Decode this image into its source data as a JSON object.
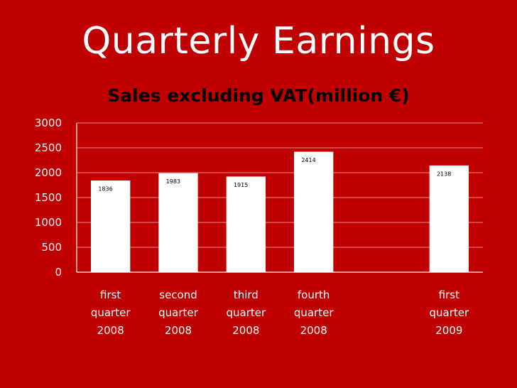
{
  "slide": {
    "title": "Quarterly Earnings"
  },
  "chart_data": {
    "type": "bar",
    "title": "Sales excluding VAT(million €)",
    "xlabel": "",
    "ylabel": "",
    "ylim": [
      0,
      3000
    ],
    "yticks": [
      0,
      500,
      1000,
      1500,
      2000,
      2500,
      3000
    ],
    "grid": true,
    "categories": [
      [
        "first",
        "quarter",
        "2008"
      ],
      [
        "second",
        "quarter",
        "2008"
      ],
      [
        "third",
        "quarter",
        "2008"
      ],
      [
        "fourth",
        "quarter",
        "2008"
      ],
      [
        "",
        "",
        ""
      ],
      [
        "first",
        "quarter",
        "2009"
      ]
    ],
    "values": [
      1836,
      1983,
      1915,
      2414,
      null,
      2138
    ],
    "colors": {
      "background": "#c00000",
      "bar": "#ffffff",
      "text": "#ffffff",
      "title": "#000000"
    }
  }
}
